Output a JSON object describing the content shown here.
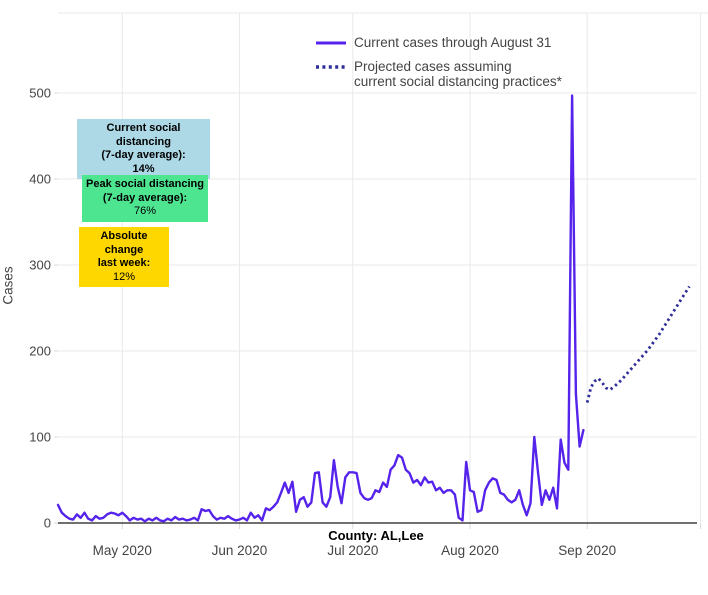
{
  "axes": {
    "y_label": "Cases",
    "x_label": "County: AL,Lee",
    "y_ticks": [
      0,
      100,
      200,
      300,
      400,
      500
    ],
    "x_ticks": [
      {
        "label": "May 2020",
        "date": "2020-05-01"
      },
      {
        "label": "Jun 2020",
        "date": "2020-06-01"
      },
      {
        "label": "Jul 2020",
        "date": "2020-07-01"
      },
      {
        "label": "Aug 2020",
        "date": "2020-08-01"
      },
      {
        "label": "Sep 2020",
        "date": "2020-09-01"
      },
      {
        "label": "",
        "date": "2020-10-01"
      }
    ]
  },
  "legend": {
    "solid_label": "Current cases through August 31",
    "dotted_label": "Projected cases assuming\ncurrent social distancing practices*"
  },
  "annotations": {
    "current": {
      "line1": "Current social distancing",
      "line2": "(7-day average):",
      "value": "14%",
      "bg": "#ADD8E6"
    },
    "peak": {
      "line1": "Peak social distancing",
      "line2": "(7-day average):",
      "value": "76%",
      "bg": "#4EE591"
    },
    "change": {
      "line1": "Absolute change",
      "line2": "last week:",
      "value": "12%",
      "bg": "#FFD700"
    }
  },
  "colors": {
    "background": "#ffffff",
    "gridline": "#e9e9e9",
    "axis_line": "#404040",
    "tick_text": "#444444",
    "solid_line": "#5523EB",
    "dotted_line": "#2E2E99"
  },
  "chart_data": {
    "type": "line",
    "title": "",
    "xlabel": "County: AL,Lee",
    "ylabel": "Cases",
    "ylim": [
      0,
      590
    ],
    "x_range": [
      "2020-04-14",
      "2020-10-01"
    ],
    "grid": true,
    "legend_position": "top-center-inside",
    "series": [
      {
        "name": "Current cases through August 31",
        "style": "solid",
        "color": "#5523EB",
        "start_date": "2020-04-14",
        "cadence": "daily",
        "values": [
          21,
          12,
          8,
          5,
          4,
          10,
          6,
          12,
          5,
          3,
          8,
          5,
          6,
          10,
          12,
          11,
          9,
          12,
          8,
          3,
          6,
          4,
          5,
          2,
          5,
          3,
          6,
          3,
          2,
          5,
          3,
          7,
          4,
          5,
          3,
          4,
          6,
          3,
          16,
          14,
          15,
          8,
          4,
          6,
          5,
          8,
          5,
          3,
          4,
          6,
          3,
          12,
          6,
          9,
          3,
          17,
          15,
          19,
          24,
          35,
          47,
          35,
          48,
          13,
          27,
          30,
          19,
          24,
          58,
          59,
          24,
          19,
          30,
          73,
          42,
          23,
          53,
          59,
          59,
          58,
          35,
          29,
          27,
          29,
          38,
          36,
          47,
          42,
          62,
          67,
          79,
          76,
          62,
          58,
          47,
          50,
          44,
          53,
          47,
          48,
          38,
          41,
          35,
          38,
          38,
          33,
          6,
          3,
          71,
          38,
          36,
          13,
          15,
          38,
          47,
          52,
          50,
          35,
          33,
          27,
          24,
          27,
          38,
          21,
          9,
          23,
          100,
          58,
          21,
          38,
          27,
          41,
          17,
          97,
          70,
          62,
          497,
          150,
          89,
          108
        ]
      },
      {
        "name": "Projected cases assuming current social distancing practices*",
        "style": "dotted",
        "color": "#2E2E99",
        "start_date": "2020-09-01",
        "cadence": "daily",
        "values": [
          140,
          158,
          165,
          168,
          163,
          157,
          155,
          158,
          162,
          166,
          171,
          176,
          181,
          186,
          191,
          196,
          201,
          207,
          213,
          219,
          226,
          233,
          240,
          247,
          254,
          261,
          268,
          275
        ]
      }
    ]
  }
}
